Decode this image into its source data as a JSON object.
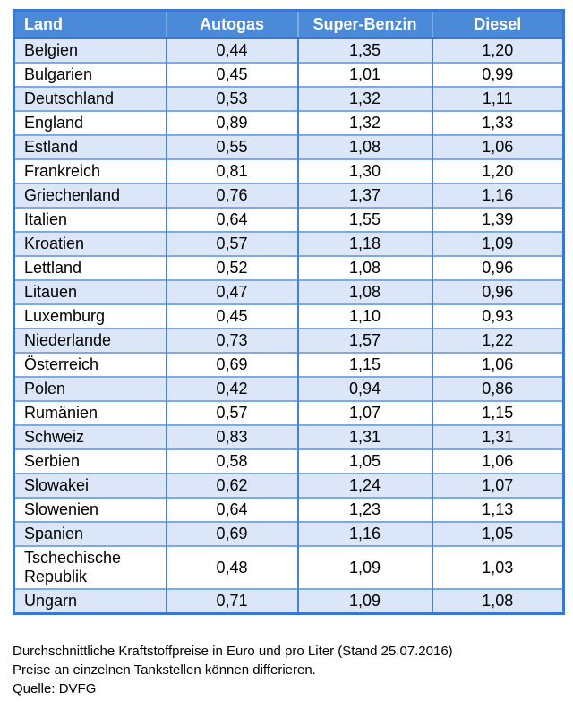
{
  "chart_data": {
    "type": "table",
    "columns": [
      "Land",
      "Autogas",
      "Super-Benzin",
      "Diesel"
    ],
    "rows": [
      {
        "land": "Belgien",
        "autogas": "0,44",
        "super_benzin": "1,35",
        "diesel": "1,20"
      },
      {
        "land": "Bulgarien",
        "autogas": "0,45",
        "super_benzin": "1,01",
        "diesel": "0,99"
      },
      {
        "land": "Deutschland",
        "autogas": "0,53",
        "super_benzin": "1,32",
        "diesel": "1,11"
      },
      {
        "land": "England",
        "autogas": "0,89",
        "super_benzin": "1,32",
        "diesel": "1,33"
      },
      {
        "land": "Estland",
        "autogas": "0,55",
        "super_benzin": "1,08",
        "diesel": "1,06"
      },
      {
        "land": "Frankreich",
        "autogas": "0,81",
        "super_benzin": "1,30",
        "diesel": "1,20"
      },
      {
        "land": "Griechenland",
        "autogas": "0,76",
        "super_benzin": "1,37",
        "diesel": "1,16"
      },
      {
        "land": "Italien",
        "autogas": "0,64",
        "super_benzin": "1,55",
        "diesel": "1,39"
      },
      {
        "land": "Kroatien",
        "autogas": "0,57",
        "super_benzin": "1,18",
        "diesel": "1,09"
      },
      {
        "land": "Lettland",
        "autogas": "0,52",
        "super_benzin": "1,08",
        "diesel": "0,96"
      },
      {
        "land": "Litauen",
        "autogas": "0,47",
        "super_benzin": "1,08",
        "diesel": "0,96"
      },
      {
        "land": "Luxemburg",
        "autogas": "0,45",
        "super_benzin": "1,10",
        "diesel": "0,93"
      },
      {
        "land": "Niederlande",
        "autogas": "0,73",
        "super_benzin": "1,57",
        "diesel": "1,22"
      },
      {
        "land": "Österreich",
        "autogas": "0,69",
        "super_benzin": "1,15",
        "diesel": "1,06"
      },
      {
        "land": "Polen",
        "autogas": "0,42",
        "super_benzin": "0,94",
        "diesel": "0,86"
      },
      {
        "land": "Rumänien",
        "autogas": "0,57",
        "super_benzin": "1,07",
        "diesel": "1,15"
      },
      {
        "land": "Schweiz",
        "autogas": "0,83",
        "super_benzin": "1,31",
        "diesel": "1,31"
      },
      {
        "land": "Serbien",
        "autogas": "0,58",
        "super_benzin": "1,05",
        "diesel": "1,06"
      },
      {
        "land": "Slowakei",
        "autogas": "0,62",
        "super_benzin": "1,24",
        "diesel": "1,07"
      },
      {
        "land": "Slowenien",
        "autogas": "0,64",
        "super_benzin": "1,23",
        "diesel": "1,13"
      },
      {
        "land": "Spanien",
        "autogas": "0,69",
        "super_benzin": "1,16",
        "diesel": "1,05"
      },
      {
        "land": "Tschechische Republik",
        "autogas": "0,48",
        "super_benzin": "1,09",
        "diesel": "1,03"
      },
      {
        "land": "Ungarn",
        "autogas": "0,71",
        "super_benzin": "1,09",
        "diesel": "1,08"
      }
    ],
    "caption": "Durchschnittliche Kraftstoffpreise in Euro und pro Liter (Stand 25.07.2016)",
    "note": "Preise an einzelnen Tankstellen können differieren.",
    "source": "Quelle: DVFG",
    "layout": {
      "first_row_shaded": true,
      "row_striping": "alternating"
    }
  },
  "colors": {
    "header_bg": "#4a8ad8",
    "header_text": "#ffffff",
    "row_alt_bg": "#dbe7f8",
    "row_bg": "#ffffff",
    "outer_border": "#3b77d2",
    "grid_vertical": "#4583d6",
    "grid_horizontal": "#7fa9e6",
    "body_text": "#000000"
  }
}
